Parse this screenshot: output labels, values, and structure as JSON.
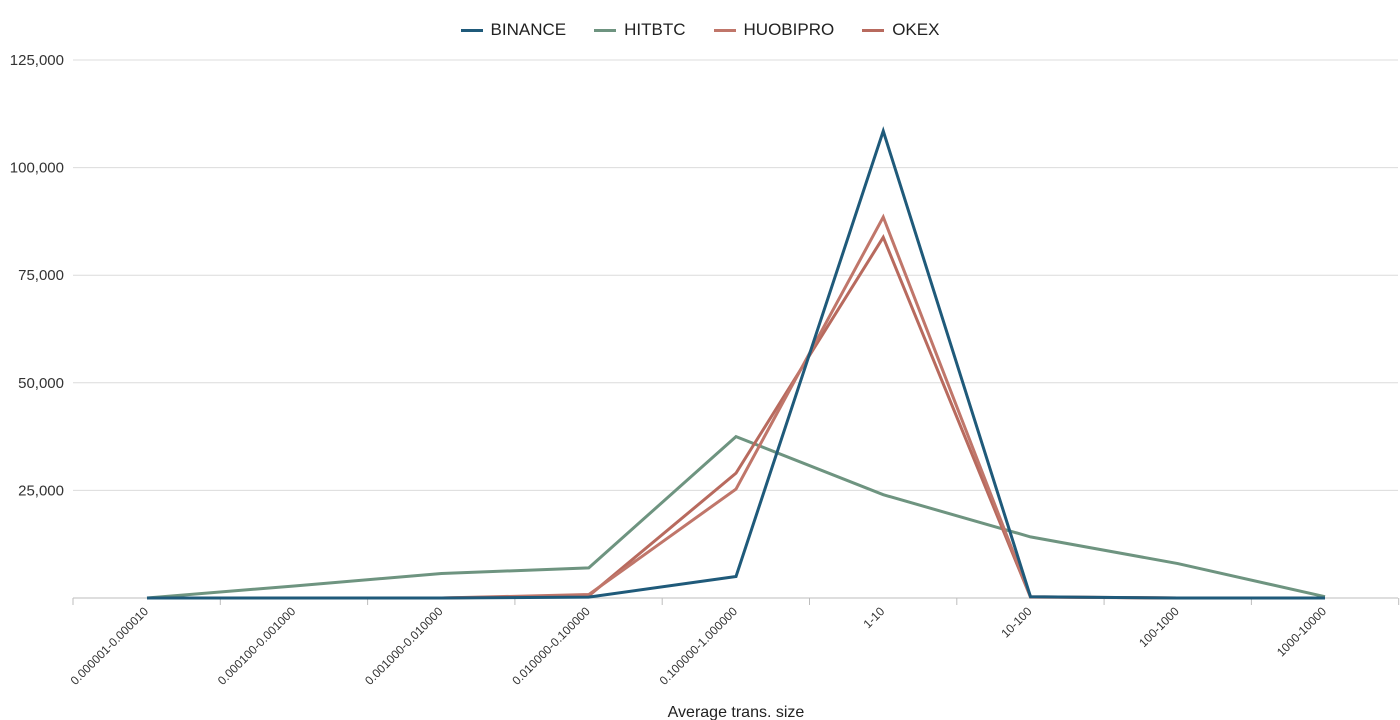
{
  "chart_data": {
    "type": "line",
    "categories": [
      "0.000001-0.000010",
      "0.000100-0.001000",
      "0.001000-0.010000",
      "0.010000-0.100000",
      "0.100000-1.000000",
      "1-10",
      "10-100",
      "100-1000",
      "1000-10000"
    ],
    "series": [
      {
        "name": "BINANCE",
        "color": "#1f5a7a",
        "values": [
          0,
          0,
          0,
          200,
          5000,
          108500,
          300,
          0,
          0
        ]
      },
      {
        "name": "HITBTC",
        "color": "#6e9480",
        "values": [
          0,
          2800,
          5700,
          7000,
          37500,
          24000,
          14200,
          8000,
          300
        ]
      },
      {
        "name": "HUOBIPRO",
        "color": "#c0766a",
        "values": [
          0,
          0,
          0,
          800,
          25300,
          88500,
          300,
          0,
          0
        ]
      },
      {
        "name": "OKEX",
        "color": "#b86a5e",
        "values": [
          0,
          0,
          0,
          500,
          29000,
          83800,
          200,
          0,
          0
        ]
      }
    ],
    "xlabel": "Average trans. size",
    "ylabel": "",
    "ylim": [
      0,
      125000
    ],
    "yticks": [
      "25,000",
      "50,000",
      "75,000",
      "100,000",
      "125,000"
    ],
    "ytick_values": [
      25000,
      50000,
      75000,
      100000,
      125000
    ],
    "grid": true,
    "legend_position": "top-center"
  }
}
